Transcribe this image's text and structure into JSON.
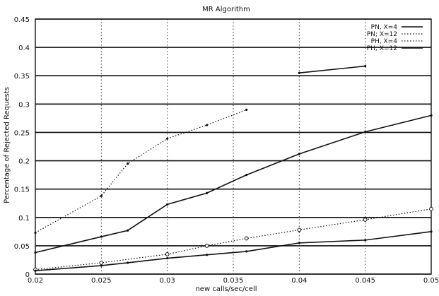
{
  "chart_data": {
    "type": "line",
    "title": "MR Algorithm",
    "xlabel": "new calls/sec/cell",
    "ylabel": "Percentage of Rejected Requests",
    "xlim": [
      0.02,
      0.05
    ],
    "ylim": [
      0,
      0.45
    ],
    "xticks": [
      0.02,
      0.025,
      0.03,
      0.035,
      0.04,
      0.045,
      0.05
    ],
    "xtick_labels": [
      "0.02",
      "0.025",
      "0.03",
      "0.035",
      "0.04",
      "0.045",
      "0.05"
    ],
    "yticks": [
      0,
      0.05,
      0.1,
      0.15,
      0.2,
      0.25,
      0.3,
      0.35,
      0.4,
      0.45
    ],
    "ytick_labels": [
      "0",
      "0.05",
      "0.1",
      "0.15",
      "0.2",
      "0.25",
      "0.3",
      "0.35",
      "0.4",
      "0.45"
    ],
    "grid": true,
    "legend_position": "top-right",
    "series": [
      {
        "name": "PN, X=4",
        "style": "solid",
        "marker": "dot",
        "color": "#111111",
        "x": [
          0.02,
          0.025,
          0.027,
          0.03,
          0.033,
          0.036,
          0.04,
          0.045,
          0.05
        ],
        "y": [
          0.038,
          0.066,
          0.077,
          0.123,
          0.143,
          0.175,
          0.212,
          0.251,
          0.28
        ]
      },
      {
        "name": "PN; X=12",
        "style": "dotted",
        "marker": "dot",
        "color": "#111111",
        "x": [
          0.02,
          0.025,
          0.027,
          0.03,
          0.033,
          0.036
        ],
        "y": [
          0.073,
          0.138,
          0.195,
          0.239,
          0.263,
          0.29
        ]
      },
      {
        "name": "",
        "style": "solid",
        "marker": "dot",
        "color": "#111111",
        "x": [
          0.04,
          0.045
        ],
        "y": [
          0.355,
          0.367
        ]
      },
      {
        "name": "PH, X=4",
        "style": "dotted",
        "marker": "o",
        "color": "#111111",
        "x": [
          0.02,
          0.025,
          0.03,
          0.033,
          0.036,
          0.04,
          0.045,
          0.05
        ],
        "y": [
          0.008,
          0.02,
          0.035,
          0.05,
          0.063,
          0.078,
          0.096,
          0.115
        ]
      },
      {
        "name": "PH; X=12",
        "style": "solid",
        "marker": "dot",
        "color": "#111111",
        "x": [
          0.02,
          0.025,
          0.027,
          0.03,
          0.033,
          0.036,
          0.04,
          0.045,
          0.05
        ],
        "y": [
          0.006,
          0.015,
          0.02,
          0.028,
          0.034,
          0.04,
          0.055,
          0.06,
          0.075
        ]
      }
    ]
  }
}
